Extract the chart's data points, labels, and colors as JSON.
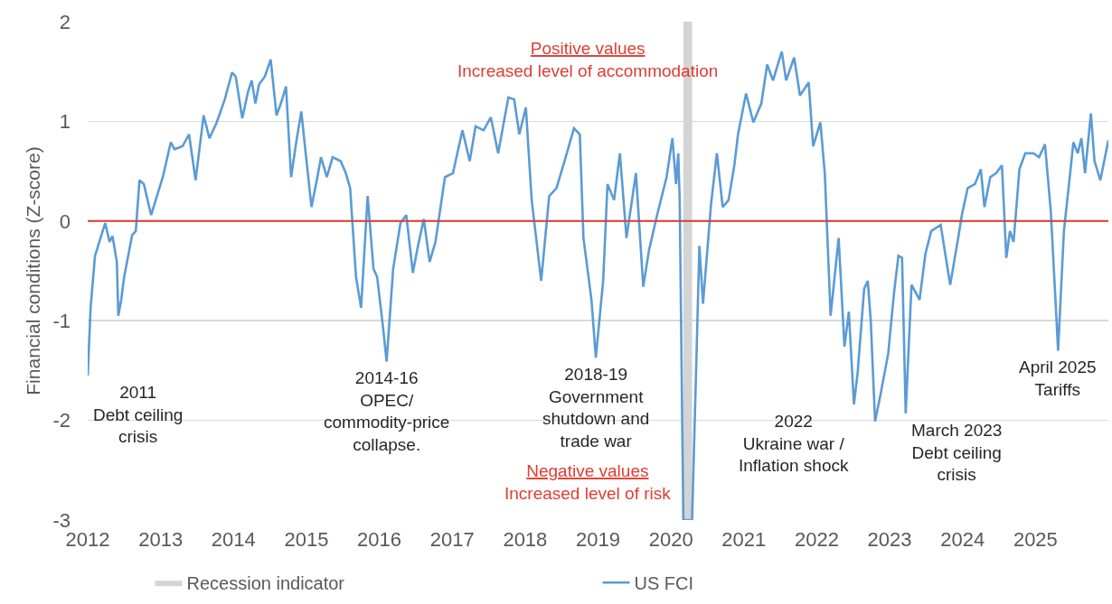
{
  "chart_data": {
    "type": "line",
    "ylabel": "Financial conditions (Z-score)",
    "xlim": [
      2012,
      2026
    ],
    "xticks": [
      2012,
      2013,
      2014,
      2015,
      2016,
      2017,
      2018,
      2019,
      2020,
      2021,
      2022,
      2023,
      2024,
      2025
    ],
    "ylim": [
      -3,
      2
    ],
    "yticks": [
      -3,
      -2,
      -1,
      0,
      1,
      2
    ],
    "grid": "y",
    "legend": "bottom",
    "marker": "none",
    "line_style": "solid",
    "series": [
      {
        "name": "US FCI",
        "color": "#5b9bd5",
        "x": [
          2012.0,
          2012.04,
          2012.1,
          2012.24,
          2012.3,
          2012.34,
          2012.4,
          2012.42,
          2012.46,
          2012.5,
          2012.61,
          2012.66,
          2012.71,
          2012.77,
          2012.87,
          2012.95,
          2013.03,
          2013.14,
          2013.19,
          2013.3,
          2013.39,
          2013.48,
          2013.59,
          2013.67,
          2013.77,
          2013.88,
          2013.98,
          2014.03,
          2014.12,
          2014.2,
          2014.25,
          2014.3,
          2014.35,
          2014.43,
          2014.51,
          2014.59,
          2014.65,
          2014.72,
          2014.79,
          2014.86,
          2014.93,
          2014.99,
          2015.07,
          2015.15,
          2015.2,
          2015.28,
          2015.36,
          2015.47,
          2015.54,
          2015.6,
          2015.68,
          2015.75,
          2015.84,
          2015.92,
          2015.97,
          2016.05,
          2016.1,
          2016.19,
          2016.29,
          2016.37,
          2016.46,
          2016.53,
          2016.61,
          2016.69,
          2016.77,
          2016.9,
          2017.01,
          2017.14,
          2017.24,
          2017.32,
          2017.43,
          2017.53,
          2017.63,
          2017.77,
          2017.85,
          2017.92,
          2018.01,
          2018.09,
          2018.22,
          2018.33,
          2018.43,
          2018.54,
          2018.67,
          2018.75,
          2018.8,
          2018.91,
          2018.97,
          2019.07,
          2019.13,
          2019.22,
          2019.3,
          2019.39,
          2019.52,
          2019.62,
          2019.7,
          2019.81,
          2019.94,
          2020.02,
          2020.07,
          2020.1,
          2020.12,
          2020.17,
          2020.29,
          2020.34,
          2020.39,
          2020.44,
          2020.55,
          2020.63,
          2020.71,
          2020.79,
          2020.87,
          2020.92,
          2021.03,
          2021.13,
          2021.24,
          2021.32,
          2021.4,
          2021.52,
          2021.58,
          2021.69,
          2021.77,
          2021.89,
          2021.95,
          2022.05,
          2022.11,
          2022.19,
          2022.3,
          2022.38,
          2022.44,
          2022.51,
          2022.56,
          2022.65,
          2022.7,
          2022.74,
          2022.8,
          2022.88,
          2022.98,
          2023.06,
          2023.12,
          2023.17,
          2023.22,
          2023.3,
          2023.41,
          2023.49,
          2023.57,
          2023.7,
          2023.83,
          2023.94,
          2023.99,
          2024.07,
          2024.17,
          2024.25,
          2024.3,
          2024.38,
          2024.46,
          2024.54,
          2024.6,
          2024.65,
          2024.7,
          2024.78,
          2024.86,
          2024.97,
          2025.05,
          2025.13,
          2025.21,
          2025.28,
          2025.31,
          2025.39,
          2025.47,
          2025.52,
          2025.58,
          2025.63,
          2025.68,
          2025.76,
          2025.81,
          2025.89,
          2026.0
        ],
        "values": [
          -1.55,
          -0.87,
          -0.35,
          -0.02,
          -0.21,
          -0.15,
          -0.41,
          -0.95,
          -0.79,
          -0.56,
          -0.14,
          -0.1,
          0.41,
          0.37,
          0.06,
          0.25,
          0.44,
          0.79,
          0.72,
          0.75,
          0.87,
          0.41,
          1.06,
          0.83,
          0.99,
          1.22,
          1.49,
          1.45,
          1.03,
          1.3,
          1.41,
          1.18,
          1.37,
          1.45,
          1.62,
          1.06,
          1.18,
          1.35,
          0.44,
          0.79,
          1.1,
          0.68,
          0.14,
          0.44,
          0.64,
          0.44,
          0.64,
          0.6,
          0.48,
          0.33,
          -0.56,
          -0.87,
          0.25,
          -0.48,
          -0.56,
          -1.06,
          -1.41,
          -0.48,
          -0.02,
          0.06,
          -0.52,
          -0.25,
          0.02,
          -0.41,
          -0.21,
          0.44,
          0.48,
          0.91,
          0.6,
          0.95,
          0.91,
          1.04,
          0.68,
          1.24,
          1.22,
          0.87,
          1.14,
          0.21,
          -0.6,
          0.25,
          0.33,
          0.6,
          0.93,
          0.87,
          -0.17,
          -0.79,
          -1.37,
          -0.6,
          0.37,
          0.21,
          0.68,
          -0.17,
          0.48,
          -0.66,
          -0.29,
          0.06,
          0.44,
          0.83,
          0.37,
          0.68,
          0.21,
          -3.0,
          -3.0,
          -1.64,
          -0.25,
          -0.83,
          0.17,
          0.68,
          0.14,
          0.21,
          0.56,
          0.87,
          1.28,
          0.99,
          1.18,
          1.57,
          1.41,
          1.7,
          1.41,
          1.64,
          1.26,
          1.39,
          0.75,
          0.99,
          0.48,
          -0.95,
          -0.17,
          -1.26,
          -0.91,
          -1.84,
          -1.53,
          -0.68,
          -0.6,
          -0.99,
          -2.01,
          -1.72,
          -1.33,
          -0.72,
          -0.35,
          -0.37,
          -1.93,
          -0.64,
          -0.79,
          -0.33,
          -0.1,
          -0.04,
          -0.64,
          -0.17,
          0.06,
          0.33,
          0.37,
          0.52,
          0.14,
          0.44,
          0.48,
          0.56,
          -0.37,
          -0.1,
          -0.21,
          0.52,
          0.68,
          0.68,
          0.64,
          0.77,
          0.1,
          -0.87,
          -1.3,
          -0.1,
          0.44,
          0.79,
          0.68,
          0.83,
          0.48,
          1.08,
          0.6,
          0.41,
          0.81
        ]
      }
    ],
    "ref_lines": [
      {
        "axis": "y",
        "value": 0,
        "color": "#e03c31"
      }
    ],
    "bands": [
      {
        "axis": "x",
        "from": 2020.17,
        "to": 2020.29,
        "label": "Recession indicator",
        "color": "#d4d4d4"
      }
    ],
    "annotations": [
      "Positive values\nIncreased level of accommodation",
      "Negative values\nIncreased level of risk",
      {
        "text": "2011\nDebt ceiling\ncrisis",
        "x": 2012.0,
        "y": -1.55
      },
      {
        "text": "2014-16\nOPEC/\ncommodity-price\ncollapse.",
        "x": 2016.1,
        "y": -1.41
      },
      {
        "text": "2018-19\nGovernment\nshutdown and\ntrade war",
        "x": 2018.97,
        "y": -1.37
      },
      {
        "text": "2022\nUkraine war /\nInflation shock",
        "x": 2022.51,
        "y": -1.84
      },
      {
        "text": "March 2023\nDebt ceiling\ncrisis",
        "x": 2023.22,
        "y": -1.93
      },
      {
        "text": "April 2025\nTariffs",
        "x": 2025.31,
        "y": -1.3
      }
    ]
  }
}
